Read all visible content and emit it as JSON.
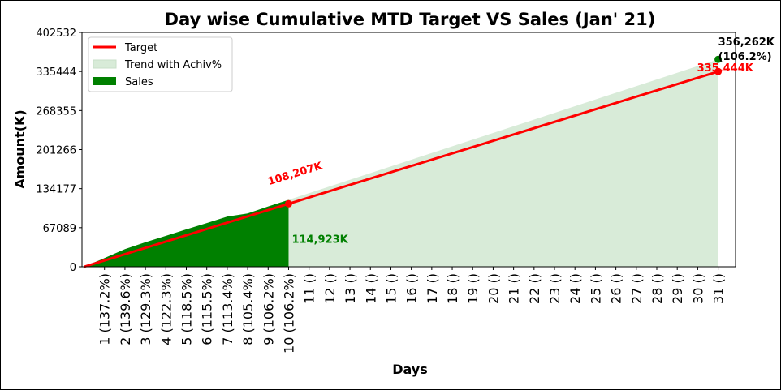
{
  "chart_data": {
    "type": "area",
    "title": "Day wise Cumulative MTD Target VS Sales (Jan' 21)",
    "xlabel": "Days",
    "ylabel": "Amount(K)",
    "ylim": [
      0,
      402532
    ],
    "yticks": [
      "0",
      "67089",
      "134177",
      "201266",
      "268355",
      "335444",
      "402532"
    ],
    "ytick_values": [
      0,
      67089,
      134177,
      201266,
      268355,
      335444,
      402532
    ],
    "categories": [
      "1 (137.2%)",
      "2 (139.6%)",
      "3 (129.3%)",
      "4 (122.3%)",
      "5 (118.5%)",
      "6 (115.5%)",
      "7 (113.4%)",
      "8 (105.4%)",
      "9 (106.2%)",
      "10 (106.2%)",
      "11 ()",
      "12 ()",
      "13 ()",
      "14 ()",
      "15 ()",
      "16 ()",
      "17 ()",
      "18 ()",
      "19 ()",
      "20 ()",
      "21 ()",
      "22 ()",
      "23 ()",
      "24 ()",
      "25 ()",
      "26 ()",
      "27 ()",
      "28 ()",
      "29 ()",
      "30 ()",
      "31 ()"
    ],
    "x_start": 0,
    "x_end": 31,
    "grid": false,
    "legend_position": "top-left",
    "legend": [
      "Target",
      "Trend with Achiv%",
      "Sales"
    ],
    "series": [
      {
        "name": "Target",
        "kind": "line",
        "color": "#ff0000",
        "x": [
          0,
          31
        ],
        "values": [
          0,
          335444
        ]
      },
      {
        "name": "Trend with Achiv%",
        "kind": "area",
        "color": "#d8ebd8",
        "x": [
          0,
          31
        ],
        "values": [
          0,
          356262
        ]
      },
      {
        "name": "Sales",
        "kind": "area",
        "color": "#008000",
        "x": [
          0,
          1,
          2,
          3,
          4,
          5,
          6,
          7,
          8,
          9,
          10
        ],
        "values": [
          0,
          14900,
          30300,
          42100,
          53100,
          64300,
          75100,
          86100,
          91500,
          103600,
          114923
        ]
      }
    ],
    "annotations": [
      {
        "text": "108,207K",
        "x": 10,
        "y": 108207,
        "color": "#ff0000",
        "marker": true
      },
      {
        "text": "114,923K",
        "x": 10,
        "y": 114923,
        "color": "#008000",
        "marker": false
      },
      {
        "text": "335,444K",
        "x": 31,
        "y": 335444,
        "color": "#ff0000",
        "marker": true
      },
      {
        "text": "356,262K",
        "x": 31,
        "y": 356262,
        "color": "#000000",
        "marker": true,
        "marker_color": "#008000"
      },
      {
        "text": "(106.2%)",
        "x": 31,
        "y": 356262,
        "color": "#000000",
        "marker": false
      }
    ]
  }
}
